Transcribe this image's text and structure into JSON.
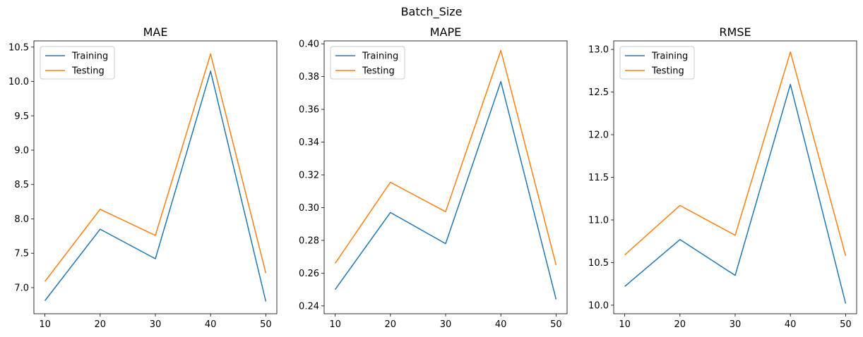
{
  "suptitle": "Batch_Size",
  "chart_data": [
    {
      "type": "line",
      "title": "MAE",
      "x": [
        10,
        20,
        30,
        40,
        50
      ],
      "xticks": [
        10,
        20,
        30,
        40,
        50
      ],
      "ylim": [
        6.62,
        10.59
      ],
      "yticks": [
        7.0,
        7.5,
        8.0,
        8.5,
        9.0,
        9.5,
        10.0,
        10.5
      ],
      "ytick_labels": [
        "7.0",
        "7.5",
        "8.0",
        "8.5",
        "9.0",
        "9.5",
        "10.0",
        "10.5"
      ],
      "series": [
        {
          "name": "Training",
          "color": "#1f77b4",
          "values": [
            6.81,
            7.85,
            7.42,
            10.15,
            6.8
          ]
        },
        {
          "name": "Testing",
          "color": "#ff7f0e",
          "values": [
            7.09,
            8.14,
            7.76,
            10.4,
            7.21
          ]
        }
      ],
      "legend": "upper left",
      "grid": false
    },
    {
      "type": "line",
      "title": "MAPE",
      "x": [
        10,
        20,
        30,
        40,
        50
      ],
      "xticks": [
        10,
        20,
        30,
        40,
        50
      ],
      "ylim": [
        0.2352,
        0.4018
      ],
      "yticks": [
        0.24,
        0.26,
        0.28,
        0.3,
        0.32,
        0.34,
        0.36,
        0.38,
        0.4
      ],
      "ytick_labels": [
        "0.24",
        "0.26",
        "0.28",
        "0.30",
        "0.32",
        "0.34",
        "0.36",
        "0.38",
        "0.40"
      ],
      "series": [
        {
          "name": "Training",
          "color": "#1f77b4",
          "values": [
            0.25,
            0.297,
            0.278,
            0.377,
            0.244
          ]
        },
        {
          "name": "Testing",
          "color": "#ff7f0e",
          "values": [
            0.266,
            0.3155,
            0.2975,
            0.396,
            0.265
          ]
        }
      ],
      "legend": "upper left",
      "grid": false
    },
    {
      "type": "line",
      "title": "RMSE",
      "x": [
        10,
        20,
        30,
        40,
        50
      ],
      "xticks": [
        10,
        20,
        30,
        40,
        50
      ],
      "ylim": [
        9.9,
        13.1
      ],
      "yticks": [
        10.0,
        10.5,
        11.0,
        11.5,
        12.0,
        12.5,
        13.0
      ],
      "ytick_labels": [
        "10.0",
        "10.5",
        "11.0",
        "11.5",
        "12.0",
        "12.5",
        "13.0"
      ],
      "series": [
        {
          "name": "Training",
          "color": "#1f77b4",
          "values": [
            10.22,
            10.77,
            10.35,
            12.59,
            10.02
          ]
        },
        {
          "name": "Testing",
          "color": "#ff7f0e",
          "values": [
            10.59,
            11.17,
            10.82,
            12.97,
            10.58
          ]
        }
      ],
      "legend": "upper left",
      "grid": false
    }
  ]
}
